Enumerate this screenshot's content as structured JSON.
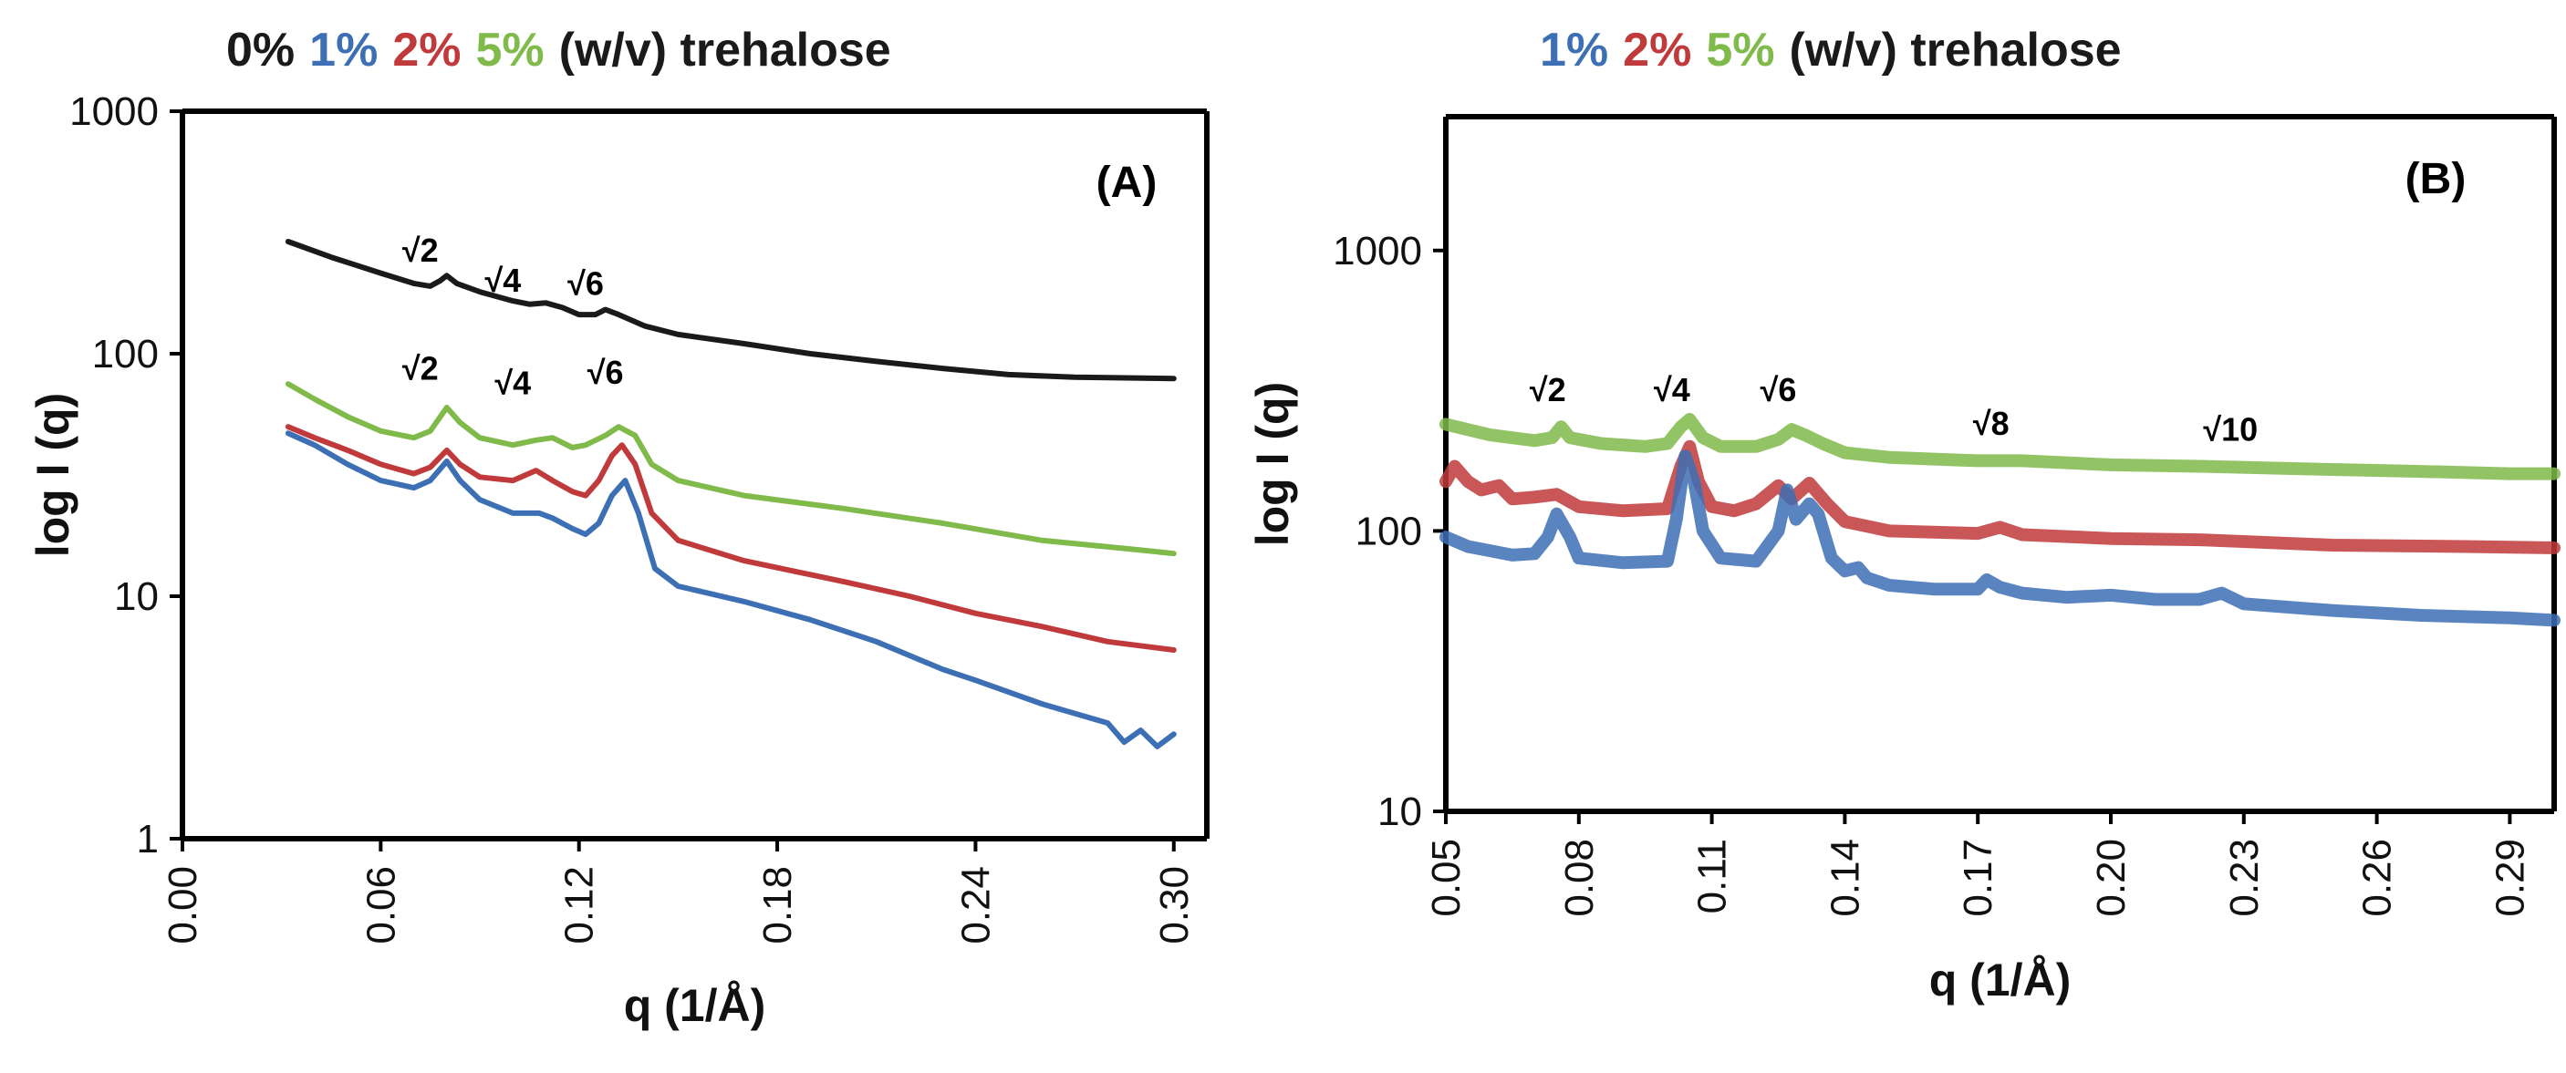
{
  "colors": {
    "c0": "#1a1a1a",
    "c1": "#3d6fb5",
    "c2": "#c0393b",
    "c5": "#7fba4a"
  },
  "chart_data": [
    {
      "panel": "A",
      "type": "line",
      "title_parts": [
        {
          "text": "0%",
          "color": "c0"
        },
        {
          "text": "1%",
          "color": "c1"
        },
        {
          "text": "2%",
          "color": "c2"
        },
        {
          "text": "5%",
          "color": "c5"
        },
        {
          "text": "(w/v) trehalose",
          "color": "c0"
        }
      ],
      "panel_label": "(A)",
      "xlabel": "q (1/Å)",
      "ylabel": "log I (q)",
      "xlim": [
        0.0,
        0.31
      ],
      "ylim": [
        1,
        1000
      ],
      "yscale": "log",
      "xticks": [
        0.0,
        0.06,
        0.12,
        0.18,
        0.24,
        0.3
      ],
      "xtick_labels": [
        "0.00",
        "0.06",
        "0.12",
        "0.18",
        "0.24",
        "0.30"
      ],
      "yticks": [
        1,
        10,
        100,
        1000
      ],
      "ytick_labels": [
        "1",
        "10",
        "100",
        "1000"
      ],
      "series": [
        {
          "name": "0%",
          "color": "c0",
          "width": 6,
          "points": [
            [
              0.032,
              290
            ],
            [
              0.045,
              250
            ],
            [
              0.06,
              215
            ],
            [
              0.07,
              195
            ],
            [
              0.075,
              190
            ],
            [
              0.078,
              200
            ],
            [
              0.08,
              210
            ],
            [
              0.083,
              195
            ],
            [
              0.09,
              180
            ],
            [
              0.1,
              165
            ],
            [
              0.105,
              160
            ],
            [
              0.11,
              162
            ],
            [
              0.115,
              155
            ],
            [
              0.12,
              145
            ],
            [
              0.125,
              145
            ],
            [
              0.128,
              152
            ],
            [
              0.132,
              145
            ],
            [
              0.14,
              130
            ],
            [
              0.15,
              120
            ],
            [
              0.17,
              110
            ],
            [
              0.19,
              100
            ],
            [
              0.21,
              93
            ],
            [
              0.23,
              87
            ],
            [
              0.25,
              82
            ],
            [
              0.27,
              80
            ],
            [
              0.3,
              79
            ]
          ]
        },
        {
          "name": "5%",
          "color": "c5",
          "width": 6,
          "points": [
            [
              0.032,
              75
            ],
            [
              0.04,
              65
            ],
            [
              0.05,
              55
            ],
            [
              0.06,
              48
            ],
            [
              0.07,
              45
            ],
            [
              0.075,
              48
            ],
            [
              0.08,
              60
            ],
            [
              0.084,
              52
            ],
            [
              0.09,
              45
            ],
            [
              0.1,
              42
            ],
            [
              0.107,
              44
            ],
            [
              0.112,
              45
            ],
            [
              0.118,
              41
            ],
            [
              0.122,
              42
            ],
            [
              0.128,
              46
            ],
            [
              0.132,
              50
            ],
            [
              0.137,
              46
            ],
            [
              0.142,
              35
            ],
            [
              0.15,
              30
            ],
            [
              0.17,
              26
            ],
            [
              0.2,
              23
            ],
            [
              0.23,
              20
            ],
            [
              0.26,
              17
            ],
            [
              0.29,
              15.5
            ],
            [
              0.3,
              15
            ]
          ]
        },
        {
          "name": "2%",
          "color": "c2",
          "width": 6,
          "points": [
            [
              0.032,
              50
            ],
            [
              0.04,
              45
            ],
            [
              0.05,
              40
            ],
            [
              0.06,
              35
            ],
            [
              0.07,
              32
            ],
            [
              0.075,
              34
            ],
            [
              0.08,
              40
            ],
            [
              0.084,
              35
            ],
            [
              0.09,
              31
            ],
            [
              0.1,
              30
            ],
            [
              0.107,
              33
            ],
            [
              0.112,
              30
            ],
            [
              0.118,
              27
            ],
            [
              0.122,
              26
            ],
            [
              0.126,
              30
            ],
            [
              0.13,
              38
            ],
            [
              0.133,
              42
            ],
            [
              0.137,
              35
            ],
            [
              0.142,
              22
            ],
            [
              0.15,
              17
            ],
            [
              0.17,
              14
            ],
            [
              0.2,
              11.5
            ],
            [
              0.22,
              10
            ],
            [
              0.24,
              8.5
            ],
            [
              0.26,
              7.5
            ],
            [
              0.28,
              6.5
            ],
            [
              0.3,
              6
            ]
          ]
        },
        {
          "name": "1%",
          "color": "c1",
          "width": 6,
          "points": [
            [
              0.032,
              47
            ],
            [
              0.04,
              42
            ],
            [
              0.05,
              35
            ],
            [
              0.06,
              30
            ],
            [
              0.07,
              28
            ],
            [
              0.075,
              30
            ],
            [
              0.08,
              36
            ],
            [
              0.084,
              30
            ],
            [
              0.09,
              25
            ],
            [
              0.1,
              22
            ],
            [
              0.108,
              22
            ],
            [
              0.112,
              21
            ],
            [
              0.118,
              19
            ],
            [
              0.122,
              18
            ],
            [
              0.126,
              20
            ],
            [
              0.13,
              26
            ],
            [
              0.134,
              30
            ],
            [
              0.138,
              22
            ],
            [
              0.143,
              13
            ],
            [
              0.15,
              11
            ],
            [
              0.17,
              9.5
            ],
            [
              0.19,
              8
            ],
            [
              0.21,
              6.5
            ],
            [
              0.23,
              5
            ],
            [
              0.24,
              4.5
            ],
            [
              0.26,
              3.6
            ],
            [
              0.28,
              3
            ],
            [
              0.285,
              2.5
            ],
            [
              0.29,
              2.8
            ],
            [
              0.295,
              2.4
            ],
            [
              0.3,
              2.7
            ]
          ]
        }
      ],
      "annotations": [
        {
          "text": "√2",
          "x": 0.072,
          "y": 240
        },
        {
          "text": "√4",
          "x": 0.097,
          "y": 180
        },
        {
          "text": "√6",
          "x": 0.122,
          "y": 175
        },
        {
          "text": "√2",
          "x": 0.072,
          "y": 78
        },
        {
          "text": "√4",
          "x": 0.1,
          "y": 68
        },
        {
          "text": "√6",
          "x": 0.128,
          "y": 75
        }
      ]
    },
    {
      "panel": "B",
      "type": "line",
      "title_parts": [
        {
          "text": "1%",
          "color": "c1"
        },
        {
          "text": "2%",
          "color": "c2"
        },
        {
          "text": "5%",
          "color": "c5"
        },
        {
          "text": "(w/v) trehalose",
          "color": "c0"
        }
      ],
      "panel_label": "(B)",
      "xlabel": "q (1/Å)",
      "ylabel": "log I (q)",
      "xlim": [
        0.05,
        0.3
      ],
      "ylim": [
        10,
        3000
      ],
      "yscale": "log",
      "xticks": [
        0.05,
        0.08,
        0.11,
        0.14,
        0.17,
        0.2,
        0.23,
        0.26,
        0.29
      ],
      "xtick_labels": [
        "0.05",
        "0.08",
        "0.11",
        "0.14",
        "0.17",
        "0.20",
        "0.23",
        "0.26",
        "0.29"
      ],
      "yticks": [
        10,
        100,
        1000
      ],
      "ytick_labels": [
        "10",
        "100",
        "1000"
      ],
      "series": [
        {
          "name": "5%",
          "color": "c5",
          "width": 14,
          "points": [
            [
              0.05,
              240
            ],
            [
              0.06,
              220
            ],
            [
              0.07,
              210
            ],
            [
              0.074,
              215
            ],
            [
              0.076,
              235
            ],
            [
              0.078,
              215
            ],
            [
              0.085,
              205
            ],
            [
              0.095,
              200
            ],
            [
              0.1,
              205
            ],
            [
              0.103,
              235
            ],
            [
              0.105,
              250
            ],
            [
              0.108,
              215
            ],
            [
              0.112,
              200
            ],
            [
              0.12,
              200
            ],
            [
              0.125,
              212
            ],
            [
              0.128,
              230
            ],
            [
              0.131,
              220
            ],
            [
              0.135,
              205
            ],
            [
              0.14,
              190
            ],
            [
              0.15,
              183
            ],
            [
              0.17,
              178
            ],
            [
              0.18,
              178
            ],
            [
              0.2,
              172
            ],
            [
              0.22,
              170
            ],
            [
              0.24,
              167
            ],
            [
              0.27,
              163
            ],
            [
              0.29,
              160
            ],
            [
              0.3,
              160
            ]
          ]
        },
        {
          "name": "2%",
          "color": "c2",
          "width": 14,
          "points": [
            [
              0.05,
              150
            ],
            [
              0.052,
              170
            ],
            [
              0.055,
              150
            ],
            [
              0.058,
              140
            ],
            [
              0.062,
              145
            ],
            [
              0.065,
              130
            ],
            [
              0.07,
              132
            ],
            [
              0.075,
              135
            ],
            [
              0.08,
              122
            ],
            [
              0.09,
              118
            ],
            [
              0.1,
              120
            ],
            [
              0.103,
              170
            ],
            [
              0.105,
              200
            ],
            [
              0.107,
              150
            ],
            [
              0.11,
              122
            ],
            [
              0.115,
              118
            ],
            [
              0.12,
              125
            ],
            [
              0.125,
              145
            ],
            [
              0.128,
              130
            ],
            [
              0.132,
              148
            ],
            [
              0.136,
              125
            ],
            [
              0.14,
              108
            ],
            [
              0.15,
              100
            ],
            [
              0.17,
              98
            ],
            [
              0.175,
              103
            ],
            [
              0.18,
              97
            ],
            [
              0.2,
              94
            ],
            [
              0.22,
              93
            ],
            [
              0.25,
              89
            ],
            [
              0.28,
              88
            ],
            [
              0.3,
              87
            ]
          ]
        },
        {
          "name": "1%",
          "color": "c1",
          "width": 14,
          "points": [
            [
              0.05,
              95
            ],
            [
              0.055,
              88
            ],
            [
              0.06,
              85
            ],
            [
              0.065,
              82
            ],
            [
              0.07,
              83
            ],
            [
              0.073,
              95
            ],
            [
              0.075,
              115
            ],
            [
              0.078,
              95
            ],
            [
              0.08,
              80
            ],
            [
              0.09,
              77
            ],
            [
              0.1,
              78
            ],
            [
              0.102,
              110
            ],
            [
              0.104,
              185
            ],
            [
              0.106,
              150
            ],
            [
              0.108,
              100
            ],
            [
              0.112,
              80
            ],
            [
              0.12,
              78
            ],
            [
              0.125,
              100
            ],
            [
              0.127,
              140
            ],
            [
              0.129,
              110
            ],
            [
              0.132,
              125
            ],
            [
              0.134,
              115
            ],
            [
              0.137,
              80
            ],
            [
              0.14,
              72
            ],
            [
              0.143,
              74
            ],
            [
              0.145,
              68
            ],
            [
              0.15,
              64
            ],
            [
              0.16,
              62
            ],
            [
              0.17,
              62
            ],
            [
              0.172,
              67
            ],
            [
              0.175,
              63
            ],
            [
              0.18,
              60
            ],
            [
              0.19,
              58
            ],
            [
              0.2,
              59
            ],
            [
              0.21,
              57
            ],
            [
              0.22,
              57
            ],
            [
              0.225,
              60
            ],
            [
              0.23,
              55
            ],
            [
              0.25,
              52
            ],
            [
              0.27,
              50
            ],
            [
              0.29,
              49
            ],
            [
              0.3,
              48
            ]
          ]
        }
      ],
      "annotations": [
        {
          "text": "√2",
          "x": 0.073,
          "y": 290
        },
        {
          "text": "√4",
          "x": 0.101,
          "y": 290
        },
        {
          "text": "√6",
          "x": 0.125,
          "y": 290
        },
        {
          "text": "√8",
          "x": 0.173,
          "y": 220
        },
        {
          "text": "√10",
          "x": 0.227,
          "y": 210
        }
      ]
    }
  ]
}
